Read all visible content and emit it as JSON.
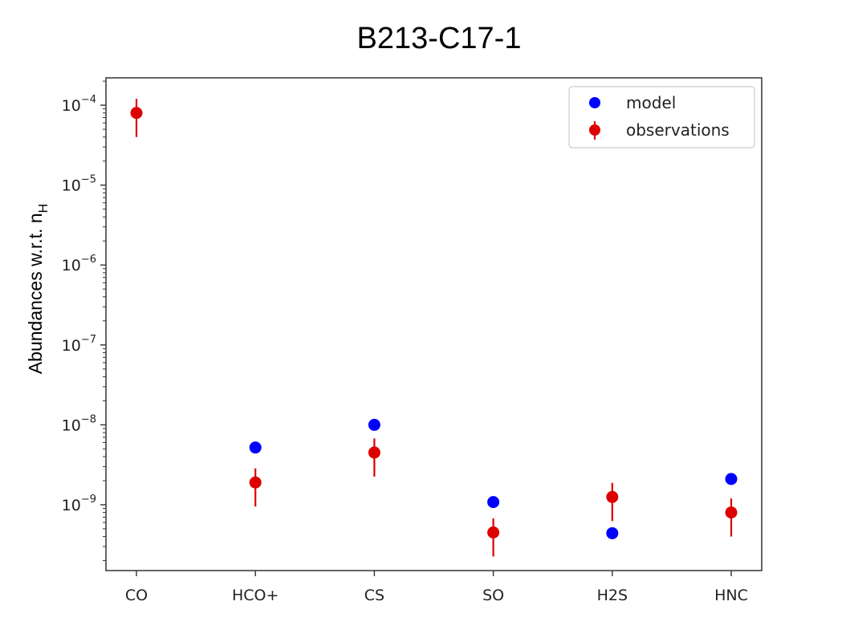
{
  "chart_data": {
    "type": "scatter",
    "title": "B213-C17-1",
    "xlabel": "",
    "ylabel_main": "Abundances w.r.t. n",
    "ylabel_sub": "H",
    "yscale": "log",
    "ylim": [
      1.5e-10,
      0.00022
    ],
    "yticks": [
      {
        "exp": "-4",
        "value": 0.0001
      },
      {
        "exp": "-5",
        "value": 1e-05
      },
      {
        "exp": "-6",
        "value": 1e-06
      },
      {
        "exp": "-7",
        "value": 1e-07
      },
      {
        "exp": "-8",
        "value": 1e-08
      },
      {
        "exp": "-9",
        "value": 1e-09
      }
    ],
    "ytick_base": "10",
    "categories": [
      "CO",
      "HCO+",
      "CS",
      "SO",
      "H2S",
      "HNC"
    ],
    "series": [
      {
        "name": "model",
        "color": "#0000ff",
        "values": [
          null,
          5.2e-09,
          1e-08,
          1.08e-09,
          4.4e-10,
          2.1e-09
        ]
      },
      {
        "name": "observations",
        "color": "#dd0000",
        "values": [
          8e-05,
          1.9e-09,
          4.5e-09,
          4.5e-10,
          1.25e-09,
          8e-10
        ],
        "err_low": [
          4e-05,
          9.5e-10,
          2.25e-09,
          2.25e-10,
          6.25e-10,
          4e-10
        ],
        "err_high": [
          0.00012,
          2.85e-09,
          6.75e-09,
          6.75e-10,
          1.88e-09,
          1.2e-09
        ]
      }
    ],
    "legend_position": "top-right",
    "grid": false
  }
}
